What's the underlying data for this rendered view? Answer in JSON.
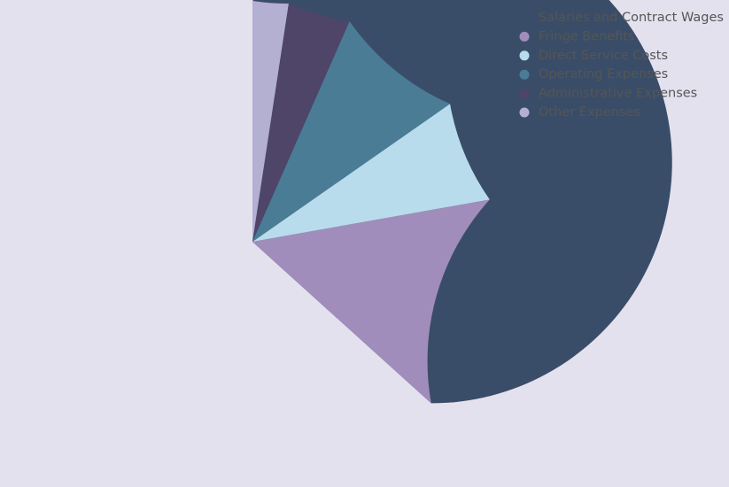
{
  "chart_data": {
    "type": "pie",
    "categories": [
      "Salaries and Contract Wages",
      "Fringe Benefits",
      "Direct Service Costs",
      "Operating Expenses",
      "Administrative Expenses",
      "Other Expenses"
    ],
    "values": [
      63.3,
      14.5,
      6.9,
      8.7,
      4.2,
      2.4
    ],
    "colors": [
      "#3a4d68",
      "#a08dbb",
      "#b8dcec",
      "#4a7c96",
      "#4e4569",
      "#b4b0d2"
    ],
    "legend": "top-right"
  }
}
